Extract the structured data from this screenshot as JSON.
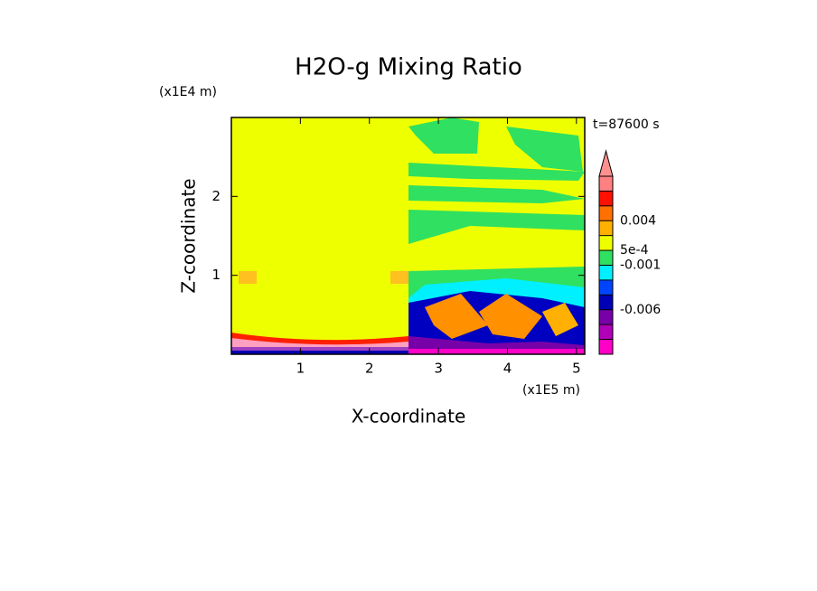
{
  "chart_data": {
    "type": "contour",
    "title": "H2O-g Mixing Ratio",
    "x_label": "X-coordinate",
    "y_label": "Z-coordinate",
    "x_unit": "(x1E5 m)",
    "y_unit": "(x1E4 m)",
    "annotation": "t=87600 s",
    "xlim": [
      0,
      5.12
    ],
    "ylim": [
      0,
      3
    ],
    "xticks": [
      1,
      2,
      3,
      4,
      5
    ],
    "yticks": [
      1,
      2
    ],
    "colorbar": {
      "colors": [
        "#ff00c8",
        "#b000b8",
        "#7800a8",
        "#0000b4",
        "#0044ff",
        "#00f0ff",
        "#30e060",
        "#eeff00",
        "#ffb000",
        "#ff7000",
        "#ff1000",
        "#ff8080"
      ],
      "extend_color": "#ff9090",
      "levels": [
        null,
        null,
        "-0.006",
        null,
        null,
        "-0.001",
        "5e-4",
        null,
        "0.004",
        null,
        null
      ]
    }
  }
}
